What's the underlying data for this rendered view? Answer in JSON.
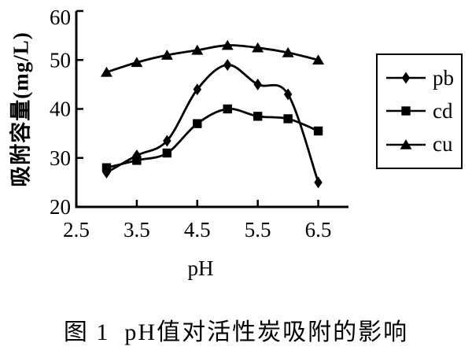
{
  "chart_data": {
    "type": "line",
    "title": "",
    "xlabel": "pH",
    "ylabel": "吸附容量(mg/L)",
    "x": [
      3.0,
      3.5,
      4.0,
      4.5,
      5.0,
      5.5,
      6.0,
      6.5
    ],
    "series": [
      {
        "name": "pb",
        "marker": "diamond",
        "values": [
          27,
          30.5,
          33.5,
          44,
          49,
          45,
          43,
          25
        ]
      },
      {
        "name": "cd",
        "marker": "square",
        "values": [
          28,
          29.5,
          31,
          37,
          40,
          38.5,
          38,
          35.5
        ]
      },
      {
        "name": "cu",
        "marker": "triangle",
        "values": [
          47.5,
          49.5,
          51,
          52,
          53,
          52.5,
          51.5,
          50
        ]
      }
    ],
    "xticks": [
      2.5,
      3.5,
      4.5,
      5.5,
      6.5
    ],
    "yticks": [
      20,
      30,
      40,
      50,
      60
    ],
    "xlim": [
      2.5,
      7.0
    ],
    "ylim": [
      20,
      60
    ],
    "grid": false,
    "legend_position": "right",
    "line_color": "#000000",
    "background": "#ffffff"
  },
  "caption": "图 1  pH值对活性炭吸附的影响"
}
